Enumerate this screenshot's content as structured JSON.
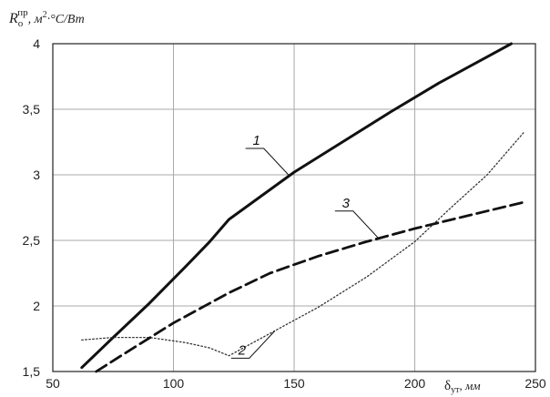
{
  "chart_data": {
    "type": "line",
    "ylabel": {
      "symbol": "R",
      "subscript": "o",
      "superscript": "пр",
      "units_pre": ", м",
      "units_sup": "2",
      "units_post": "·°C/Вт"
    },
    "xlabel": {
      "symbol": "δ",
      "subscript": "ут",
      "units": ", мм"
    },
    "xlim": [
      50,
      250
    ],
    "ylim": [
      1.5,
      4
    ],
    "x_ticks": [
      "50",
      "100",
      "150",
      "200",
      "250"
    ],
    "x_tick_values": [
      50,
      100,
      150,
      200,
      250
    ],
    "y_ticks": [
      "1,5",
      "2",
      "2,5",
      "3",
      "3,5",
      "4"
    ],
    "y_tick_values": [
      1.5,
      2,
      2.5,
      3,
      3.5,
      4
    ],
    "grid": true,
    "series": [
      {
        "label": "1",
        "style": "solid",
        "color": "#111111",
        "x": [
          62,
          75,
          90,
          105,
          115,
          123,
          135,
          150,
          170,
          190,
          210,
          230,
          240
        ],
        "y": [
          1.53,
          1.76,
          2.02,
          2.3,
          2.49,
          2.66,
          2.82,
          3.02,
          3.25,
          3.48,
          3.7,
          3.9,
          4.0
        ]
      },
      {
        "label": "2",
        "style": "dotted",
        "color": "#333333",
        "x": [
          62,
          75,
          90,
          105,
          115,
          123,
          140,
          160,
          180,
          200,
          215,
          230,
          245
        ],
        "y": [
          1.74,
          1.76,
          1.76,
          1.72,
          1.68,
          1.62,
          1.79,
          1.99,
          2.22,
          2.49,
          2.75,
          3.0,
          3.32
        ]
      },
      {
        "label": "3",
        "style": "dashed",
        "color": "#111111",
        "x": [
          68,
          80,
          100,
          123,
          140,
          160,
          180,
          200,
          220,
          245
        ],
        "y": [
          1.5,
          1.64,
          1.87,
          2.1,
          2.25,
          2.38,
          2.49,
          2.59,
          2.68,
          2.79
        ]
      }
    ],
    "annotations": [
      {
        "text": "1",
        "series": 0,
        "at_x": 148
      },
      {
        "text": "2",
        "series": 1,
        "at_x": 142
      },
      {
        "text": "3",
        "series": 2,
        "at_x": 185
      }
    ]
  }
}
